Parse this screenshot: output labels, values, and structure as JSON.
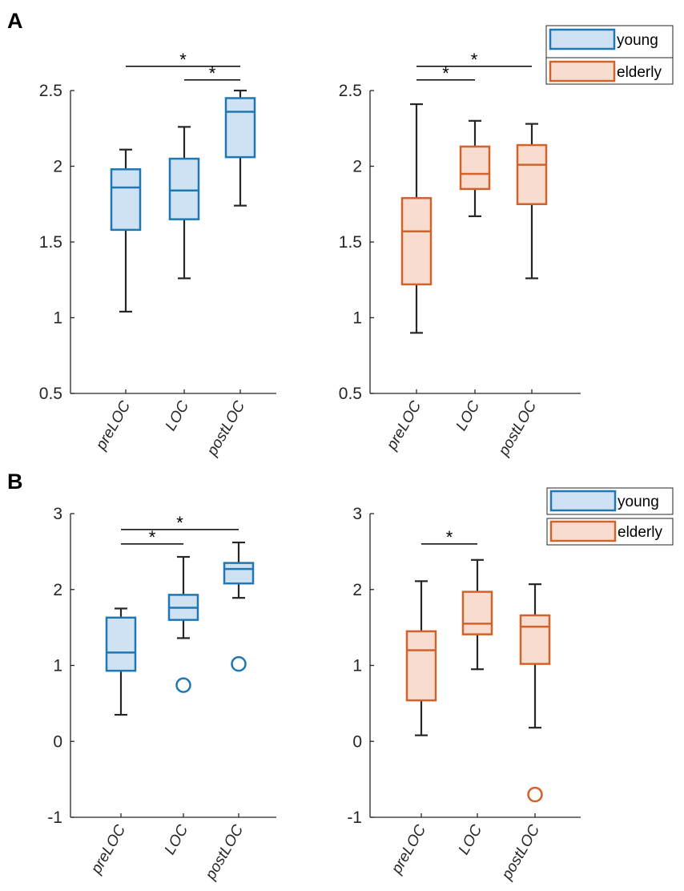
{
  "colors": {
    "young_edge": "#1f77b4",
    "young_fill": "#cfe2f3",
    "elderly_edge": "#d2622b",
    "elderly_fill": "#f8dccf",
    "axis": "#262626",
    "whisker": "#262626"
  },
  "chart_data": [
    {
      "panel": "A",
      "group": "young",
      "type": "box",
      "categories": [
        "preLOC",
        "LOC",
        "postLOC"
      ],
      "ylim": [
        0.5,
        2.5
      ],
      "yticks": [
        "0.5",
        "1",
        "1.5",
        "2",
        "2.5"
      ],
      "boxes": [
        {
          "whisker_low": 1.04,
          "q1": 1.58,
          "median": 1.86,
          "q3": 1.98,
          "whisker_high": 2.11,
          "outliers": []
        },
        {
          "whisker_low": 1.26,
          "q1": 1.65,
          "median": 1.84,
          "q3": 2.05,
          "whisker_high": 2.26,
          "outliers": []
        },
        {
          "whisker_low": 1.74,
          "q1": 2.06,
          "median": 2.36,
          "q3": 2.45,
          "whisker_high": 2.5,
          "outliers": []
        }
      ],
      "significance": [
        {
          "from": 0,
          "to": 2,
          "label": "*",
          "y": 2.66
        },
        {
          "from": 1,
          "to": 2,
          "label": "*",
          "y": 2.57
        }
      ],
      "legend": {
        "label": "young"
      }
    },
    {
      "panel": "A",
      "group": "elderly",
      "type": "box",
      "categories": [
        "preLOC",
        "LOC",
        "postLOC"
      ],
      "ylim": [
        0.5,
        2.5
      ],
      "yticks": [
        "0.5",
        "1",
        "1.5",
        "2",
        "2.5"
      ],
      "boxes": [
        {
          "whisker_low": 0.9,
          "q1": 1.22,
          "median": 1.57,
          "q3": 1.79,
          "whisker_high": 2.41,
          "outliers": []
        },
        {
          "whisker_low": 1.67,
          "q1": 1.85,
          "median": 1.95,
          "q3": 2.13,
          "whisker_high": 2.3,
          "outliers": []
        },
        {
          "whisker_low": 1.26,
          "q1": 1.75,
          "median": 2.01,
          "q3": 2.14,
          "whisker_high": 2.28,
          "outliers": []
        }
      ],
      "significance": [
        {
          "from": 0,
          "to": 2,
          "label": "*",
          "y": 2.66
        },
        {
          "from": 0,
          "to": 1,
          "label": "*",
          "y": 2.57
        }
      ],
      "legend": {
        "label": "elderly"
      }
    },
    {
      "panel": "B",
      "group": "young",
      "type": "box",
      "categories": [
        "preLOC",
        "LOC",
        "postLOC"
      ],
      "ylim": [
        -1,
        3
      ],
      "yticks": [
        "-1",
        "0",
        "1",
        "2",
        "3"
      ],
      "boxes": [
        {
          "whisker_low": 0.35,
          "q1": 0.93,
          "median": 1.17,
          "q3": 1.63,
          "whisker_high": 1.75,
          "outliers": []
        },
        {
          "whisker_low": 1.36,
          "q1": 1.6,
          "median": 1.76,
          "q3": 1.93,
          "whisker_high": 2.43,
          "outliers": [
            0.74
          ]
        },
        {
          "whisker_low": 1.89,
          "q1": 2.08,
          "median": 2.27,
          "q3": 2.35,
          "whisker_high": 2.62,
          "outliers": [
            1.02
          ]
        }
      ],
      "significance": [
        {
          "from": 0,
          "to": 2,
          "label": "*",
          "y": 2.79
        },
        {
          "from": 0,
          "to": 1,
          "label": "*",
          "y": 2.6
        }
      ],
      "legend": {
        "label": "young"
      }
    },
    {
      "panel": "B",
      "group": "elderly",
      "type": "box",
      "categories": [
        "preLOC",
        "LOC",
        "postLOC"
      ],
      "ylim": [
        -1,
        3
      ],
      "yticks": [
        "-1",
        "0",
        "1",
        "2",
        "3"
      ],
      "boxes": [
        {
          "whisker_low": 0.08,
          "q1": 0.54,
          "median": 1.2,
          "q3": 1.45,
          "whisker_high": 2.11,
          "outliers": []
        },
        {
          "whisker_low": 0.95,
          "q1": 1.41,
          "median": 1.55,
          "q3": 1.97,
          "whisker_high": 2.39,
          "outliers": []
        },
        {
          "whisker_low": 0.18,
          "q1": 1.02,
          "median": 1.51,
          "q3": 1.66,
          "whisker_high": 2.07,
          "outliers": [
            -0.7
          ]
        }
      ],
      "significance": [
        {
          "from": 0,
          "to": 1,
          "label": "*",
          "y": 2.6
        }
      ],
      "legend": {
        "label": "elderly"
      }
    }
  ],
  "panel_labels": [
    "A",
    "B"
  ]
}
